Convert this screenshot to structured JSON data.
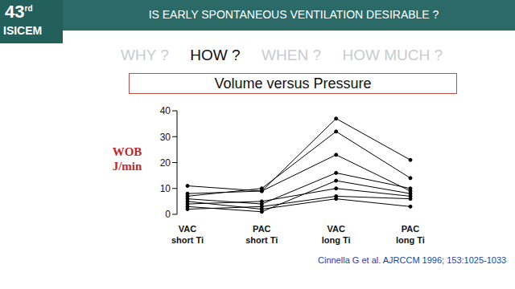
{
  "slide": {
    "logo": "43rd",
    "logo_sub": "ISICEM",
    "header": "IS EARLY SPONTANEOUS VENTILATION DESIRABLE ?",
    "steps": [
      "WHY ?",
      "HOW ?",
      "WHEN ?",
      "HOW MUCH ?"
    ],
    "highlight": "HOW ?",
    "source": "Cinnella G et al. AJRCCM 1996; 153:1025-1033"
  },
  "chart_data": {
    "type": "line",
    "title": "Volume versus Pressure",
    "y_label": "WOB J/min",
    "categories": [
      "VAC short Ti",
      "PAC short Ti",
      "VAC long Ti",
      "PAC long Ti"
    ],
    "series": [
      {
        "values": [
          8,
          9,
          37,
          21
        ]
      },
      {
        "values": [
          7,
          10,
          32,
          14
        ]
      },
      {
        "values": [
          11,
          9,
          23,
          9
        ]
      },
      {
        "values": [
          6,
          4,
          16,
          10
        ]
      },
      {
        "values": [
          3,
          1,
          13,
          8
        ]
      },
      {
        "values": [
          4,
          5,
          10,
          7
        ]
      },
      {
        "values": [
          2,
          3,
          7,
          6
        ]
      },
      {
        "values": [
          5,
          2,
          6,
          3
        ]
      }
    ],
    "color": "#000000",
    "marker": "circle",
    "ylim": [
      0,
      40
    ],
    "yticks": [
      0,
      10,
      20,
      30,
      40
    ],
    "grid": false
  }
}
